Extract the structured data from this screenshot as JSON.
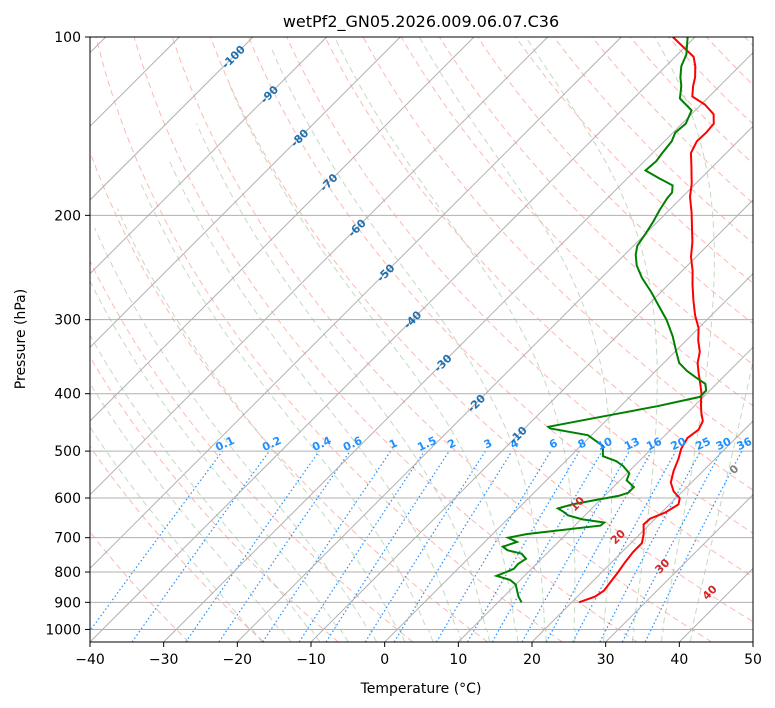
{
  "chart_data": {
    "type": "skew-t",
    "title": "wetPf2_GN05.2026.009.06.07.C36",
    "xlabel": "Temperature (°C)",
    "ylabel": "Pressure (hPa)",
    "xlim": [
      -40,
      50
    ],
    "ylim": [
      1050,
      100
    ],
    "x_ticks": [
      -40,
      -30,
      -20,
      -10,
      0,
      10,
      20,
      30,
      40,
      50
    ],
    "x_tick_labels": [
      "−40",
      "−30",
      "−20",
      "−10",
      "0",
      "10",
      "20",
      "30",
      "40",
      "50"
    ],
    "y_ticks": [
      100,
      200,
      300,
      400,
      500,
      600,
      700,
      800,
      900,
      1000
    ],
    "y_tick_labels": [
      "100",
      "200",
      "300",
      "400",
      "500",
      "600",
      "700",
      "800",
      "900",
      "1000"
    ],
    "grid": true,
    "colors": {
      "temperature": "#ff0000",
      "dewpoint": "#008000",
      "isotherm": "#b0b0b0",
      "dry_adiabat": "#fa8072",
      "moist_adiabat": "#8fbc8f",
      "mixing_ratio": "#1e90ff",
      "isotherm_label": "#1f6fb0",
      "moist_label": "#d62728",
      "zero_label": "#808080"
    },
    "mixing_ratio_labels": [
      "0.1",
      "0.2",
      "0.4",
      "0.6",
      "1",
      "1.5",
      "2",
      "3",
      "4",
      "6",
      "8",
      "10",
      "13",
      "16",
      "20",
      "25",
      "30",
      "36"
    ],
    "isotherm_labels": [
      "-100",
      "-90",
      "-80",
      "-70",
      "-60",
      "-50",
      "-40",
      "-30",
      "-20",
      "-10"
    ],
    "zero_label": "0",
    "moist_adiabat_labels": [
      "10",
      "20",
      "30",
      "40"
    ],
    "series": [
      {
        "name": "Temperature",
        "points": [
          [
            21,
            900
          ],
          [
            22.4,
            880
          ],
          [
            22.8,
            860
          ],
          [
            22.5,
            830
          ],
          [
            22.2,
            800
          ],
          [
            21.8,
            770
          ],
          [
            21.5,
            740
          ],
          [
            21.5,
            715
          ],
          [
            20.5,
            690
          ],
          [
            19.2,
            665
          ],
          [
            19.3,
            650
          ],
          [
            20.5,
            635
          ],
          [
            21.2,
            615
          ],
          [
            20.5,
            600
          ],
          [
            18.8,
            585
          ],
          [
            17.2,
            565
          ],
          [
            16,
            540
          ],
          [
            15,
            515
          ],
          [
            14,
            495
          ],
          [
            13.4,
            475
          ],
          [
            13.8,
            460
          ],
          [
            13.2,
            445
          ],
          [
            11.8,
            430
          ],
          [
            10.5,
            415
          ],
          [
            9.3,
            400
          ],
          [
            7.8,
            385
          ],
          [
            6.2,
            370
          ],
          [
            4.6,
            355
          ],
          [
            3.4,
            340
          ],
          [
            1.6,
            325
          ],
          [
            0,
            310
          ],
          [
            -2.2,
            295
          ],
          [
            -4.5,
            278
          ],
          [
            -6.7,
            262
          ],
          [
            -8.6,
            248
          ],
          [
            -10.7,
            235
          ],
          [
            -12.5,
            222
          ],
          [
            -14.5,
            210
          ],
          [
            -16.6,
            198
          ],
          [
            -19,
            186
          ],
          [
            -20.5,
            177
          ],
          [
            -23,
            165
          ],
          [
            -24.8,
            157
          ],
          [
            -25.6,
            150
          ],
          [
            -25.5,
            145
          ],
          [
            -25.7,
            140
          ],
          [
            -27,
            135
          ],
          [
            -29.5,
            130
          ],
          [
            -32.3,
            126
          ],
          [
            -33.6,
            121
          ],
          [
            -34.5,
            117
          ],
          [
            -36,
            112
          ],
          [
            -37.5,
            108
          ],
          [
            -40.2,
            104
          ],
          [
            -43,
            100
          ]
        ]
      },
      {
        "name": "Dewpoint",
        "points": [
          [
            13.2,
            900
          ],
          [
            12,
            880
          ],
          [
            11,
            860
          ],
          [
            10,
            840
          ],
          [
            8.6,
            825
          ],
          [
            6.2,
            812
          ],
          [
            7,
            800
          ],
          [
            7.6,
            790
          ],
          [
            7.5,
            775
          ],
          [
            7.9,
            760
          ],
          [
            6.6,
            745
          ],
          [
            4.2,
            735
          ],
          [
            3.1,
            725
          ],
          [
            4.4,
            712
          ],
          [
            2.6,
            700
          ],
          [
            4.7,
            690
          ],
          [
            13.5,
            668
          ],
          [
            13.6,
            660
          ],
          [
            10.2,
            652
          ],
          [
            7.7,
            642
          ],
          [
            6.6,
            633
          ],
          [
            5.4,
            625
          ],
          [
            6.8,
            615
          ],
          [
            9.3,
            605
          ],
          [
            11.9,
            595
          ],
          [
            12.8,
            588
          ],
          [
            12.8,
            575
          ],
          [
            10.9,
            560
          ],
          [
            10.3,
            545
          ],
          [
            8.5,
            530
          ],
          [
            6.9,
            520
          ],
          [
            4.4,
            510
          ],
          [
            3,
            490
          ],
          [
            -0.5,
            470
          ],
          [
            -6.5,
            458
          ],
          [
            -7,
            455
          ],
          [
            -2,
            440
          ],
          [
            5,
            420
          ],
          [
            9.5,
            405
          ],
          [
            9.5,
            395
          ],
          [
            8.5,
            385
          ],
          [
            6.2,
            375
          ],
          [
            4.2,
            366
          ],
          [
            2.1,
            355
          ],
          [
            0.2,
            340
          ],
          [
            -2.4,
            320
          ],
          [
            -5.5,
            300
          ],
          [
            -8.3,
            285
          ],
          [
            -11.2,
            270
          ],
          [
            -14.5,
            255
          ],
          [
            -16.9,
            243
          ],
          [
            -18.5,
            233
          ],
          [
            -19.5,
            225
          ],
          [
            -20,
            215
          ],
          [
            -20.6,
            205
          ],
          [
            -21.3,
            196
          ],
          [
            -21.9,
            187
          ],
          [
            -22,
            183
          ],
          [
            -22.9,
            178
          ],
          [
            -25.8,
            173
          ],
          [
            -28.6,
            168
          ],
          [
            -28.4,
            162
          ],
          [
            -28.7,
            157
          ],
          [
            -29,
            150
          ],
          [
            -29.7,
            145
          ],
          [
            -29.5,
            140
          ],
          [
            -30.5,
            133
          ],
          [
            -33.7,
            127
          ],
          [
            -35.2,
            121
          ],
          [
            -36.5,
            117
          ],
          [
            -37.9,
            112
          ],
          [
            -38.8,
            107
          ],
          [
            -41,
            100
          ]
        ]
      }
    ]
  }
}
